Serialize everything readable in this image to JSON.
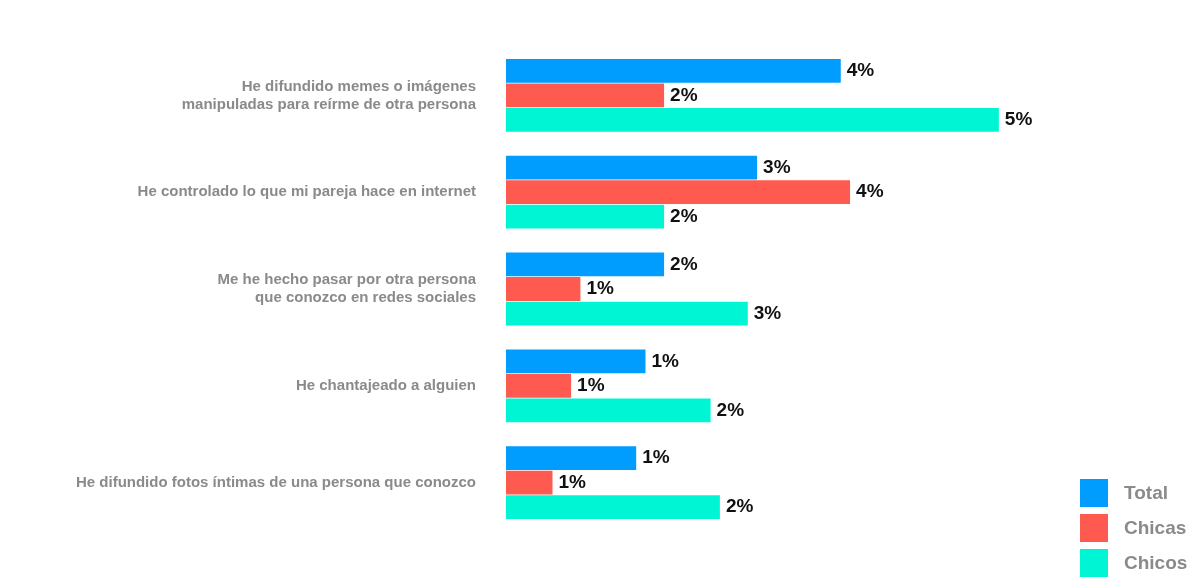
{
  "chart_data": {
    "type": "bar",
    "orientation": "horizontal",
    "categories": [
      "He difundido memes o imágenes\nmanipuladas para reírme de otra persona",
      "He controlado lo que mi pareja hace en internet",
      "Me he hecho pasar por otra persona\nque conozco en redes sociales",
      "He chantajeado a alguien",
      "He difundido fotos íntimas de una persona que conozco"
    ],
    "series": [
      {
        "name": "Total",
        "color": "#009dff",
        "values": [
          3.6,
          2.7,
          1.7,
          1.5,
          1.4
        ],
        "value_labels": [
          "4%",
          "3%",
          "2%",
          "1%",
          "1%"
        ]
      },
      {
        "name": "Chicas",
        "color": "#ff5a50",
        "values": [
          1.7,
          3.7,
          0.8,
          0.7,
          0.5
        ],
        "value_labels": [
          "2%",
          "4%",
          "1%",
          "1%",
          "1%"
        ]
      },
      {
        "name": "Chicos",
        "color": "#00f5d4",
        "values": [
          5.3,
          1.7,
          2.6,
          2.2,
          2.3
        ],
        "value_labels": [
          "5%",
          "2%",
          "3%",
          "2%",
          "2%"
        ]
      }
    ],
    "legend": "bottom right",
    "grid": false
  }
}
